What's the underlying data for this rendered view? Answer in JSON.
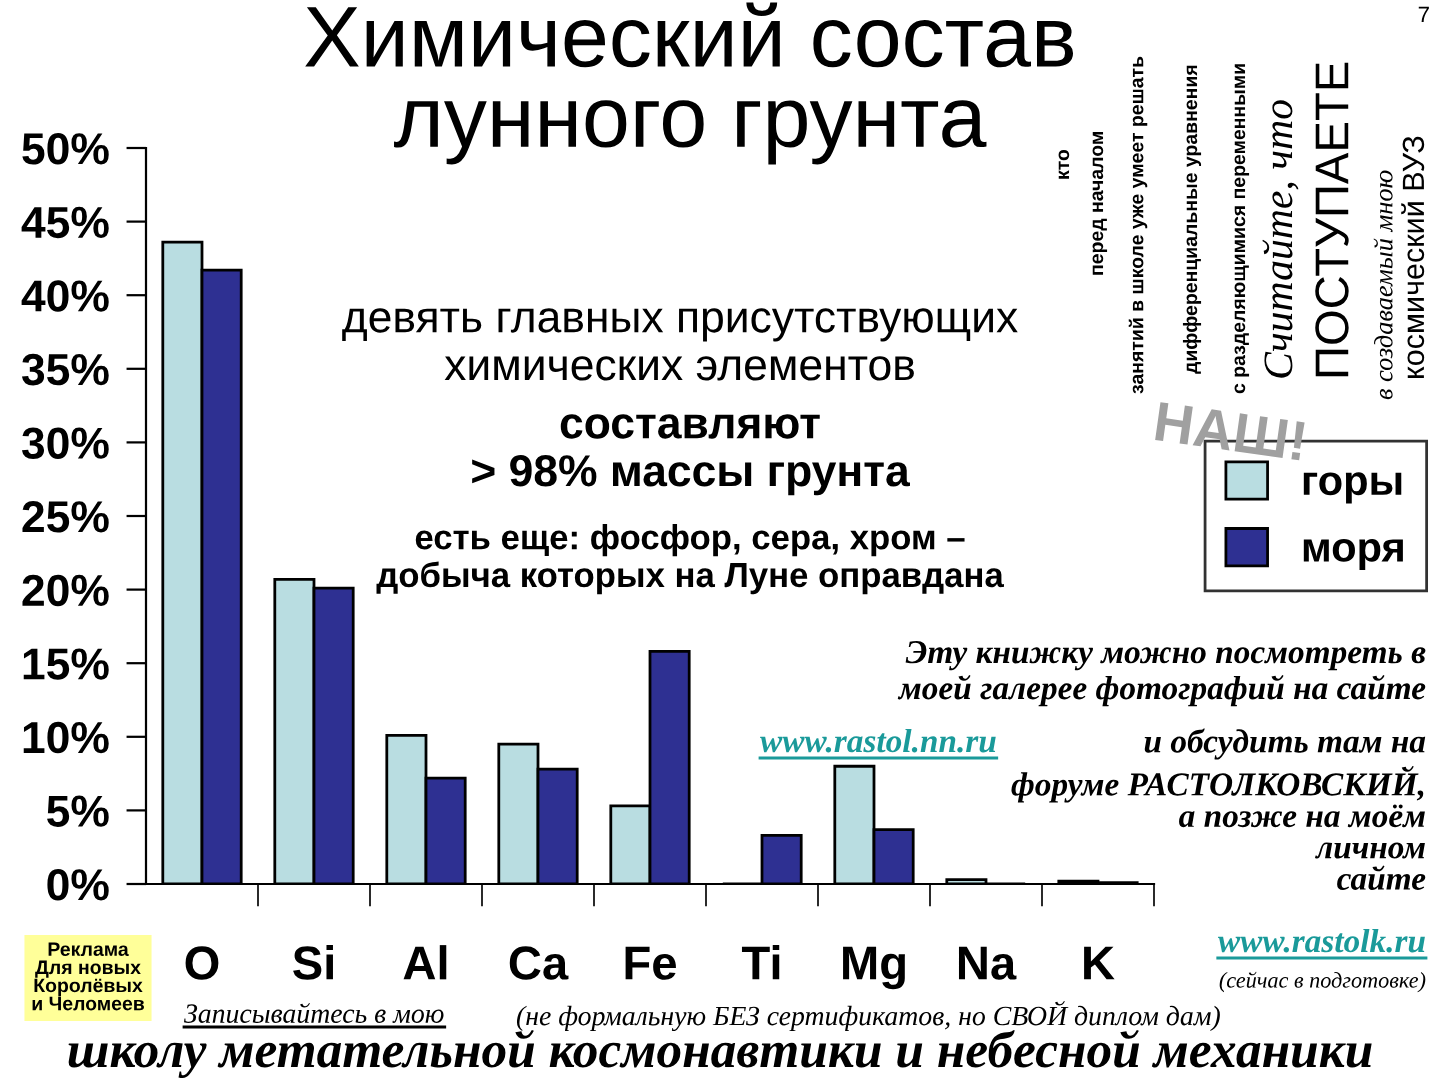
{
  "chart_data": {
    "type": "bar",
    "title": "Химический состав\nлунного грунта",
    "categories": [
      "O",
      "Si",
      "Al",
      "Ca",
      "Fe",
      "Ti",
      "Mg",
      "Na",
      "K"
    ],
    "series": [
      {
        "name": "горы",
        "color": "#b9dde1",
        "values": [
          43.6,
          20.7,
          10.1,
          9.5,
          5.3,
          null,
          8.0,
          0.3,
          0.2
        ]
      },
      {
        "name": "моря",
        "color": "#2e3092",
        "values": [
          41.7,
          20.1,
          7.2,
          7.8,
          15.8,
          3.3,
          3.7,
          null,
          0.1
        ]
      }
    ],
    "ylim": [
      0,
      50
    ],
    "yticks": [
      {
        "value": 0,
        "label": "0%"
      },
      {
        "value": 5,
        "label": "5%"
      },
      {
        "value": 10,
        "label": "10%"
      },
      {
        "value": 15,
        "label": "15%"
      },
      {
        "value": 20,
        "label": "20%"
      },
      {
        "value": 25,
        "label": "25%"
      },
      {
        "value": 30,
        "label": "30%"
      },
      {
        "value": 35,
        "label": "35%"
      },
      {
        "value": 40,
        "label": "40%"
      },
      {
        "value": 45,
        "label": "45%"
      },
      {
        "value": 50,
        "label": "50%"
      }
    ],
    "legend": "right",
    "annotations": [
      "девять главных присутствующих\nхимических элементов",
      "составляют\n> 98% массы грунта",
      "есть еще: фосфор, сера, хром –\nдобыча которых на Луне оправдана",
      "Эту книжку можно посмотреть в\nмоей галерее фотографий на сайте",
      "www.rastol.nn.ru",
      "и обсудить там на",
      "форуме РАСТОЛКОВСКИЙ,\nа позже на моём\nличном\nсайте",
      "www.rastolk.ru",
      "(сейчас в подготовке)",
      "Реклама\nДля новых\nКоролёвых\nи Челомеев",
      "Записывайтесь в мою",
      "(не формальную БЕЗ сертификатов, но СВОЙ диплом дам)",
      "школу метательной космонавтики и небесной механики",
      "кто",
      "перед началом",
      "занятий в школе уже умеет решать",
      "дифференциальные уравнения",
      "с разделяющимися переменными",
      "Считайте, что",
      "ПОСТУПАЕТЕ",
      "в создаваемый мною",
      "космический ВУЗ",
      "НАШ!",
      "7"
    ]
  }
}
